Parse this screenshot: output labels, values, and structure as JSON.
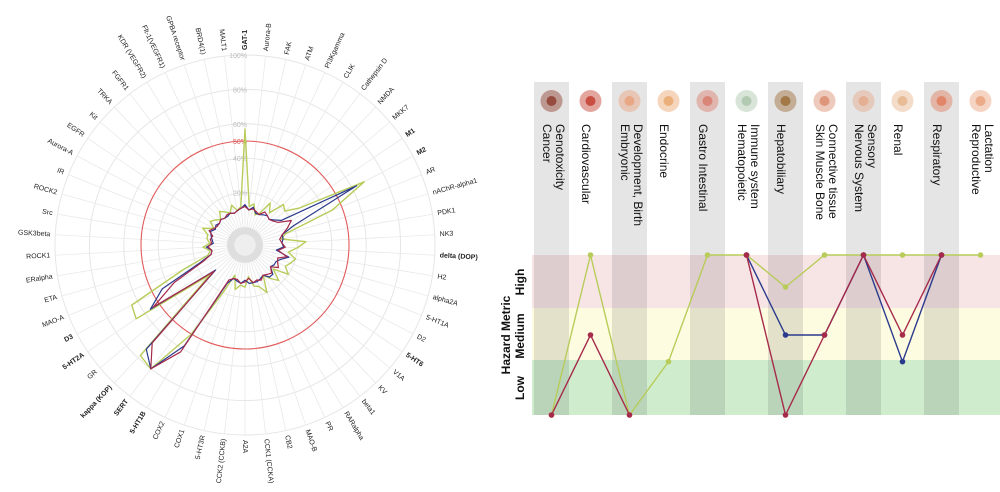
{
  "chart_data": [
    {
      "type": "radar",
      "rlim": [
        0,
        100
      ],
      "ring_labels": [
        "20%",
        "40%",
        "60%",
        "80%",
        "100%"
      ],
      "threshold": {
        "value": 50,
        "label": "50%",
        "color": "#e15a5a"
      },
      "axes": [
        "GAT-1",
        "Aurora-B",
        "FAK",
        "ATM",
        "PI3Kgamma",
        "CLIK",
        "Cathepsin D",
        "NMDA",
        "MKK7",
        "M1",
        "M2",
        "AR",
        "nAChR-alpha1",
        "PDK1",
        "NK3",
        "delta (DOP)",
        "H2",
        "alpha2A",
        "5-HT1A",
        "D2",
        "5-HT6",
        "V1A",
        "KV",
        "beta1",
        "RARalpha",
        "PR",
        "MAO-B",
        "CB2",
        "CCK1 (CCKA)",
        "A2A",
        "CCK2 (CCKB)",
        "5-HT3R",
        "COX1",
        "COX2",
        "5-HT1B",
        "SERT",
        "kappa (KOP)",
        "GR",
        "5-HT2A",
        "D3",
        "MAO-A",
        "ETA",
        "ERalpha",
        "ROCK1",
        "GSK3beta",
        "Src",
        "ROCK2",
        "IR",
        "Aurora-A",
        "EGFR",
        "Kit",
        "TRKA",
        "FGFR1",
        "KDR (VEGFR2)",
        "Flt-1(VEGFR1)",
        "GPBA receptor",
        "BRD4(1)",
        "MALT1"
      ],
      "bold_axes": [
        "GAT-1",
        "M1",
        "M2",
        "delta (DOP)",
        "5-HT6",
        "5-HT1B",
        "SERT",
        "kappa (KOP)",
        "5-HT2A",
        "D3"
      ],
      "series": [
        {
          "color": "#b8cc5a",
          "values": [
            57,
            12,
            14,
            8,
            10,
            18,
            13,
            22,
            20,
            28,
            68,
            44,
            14,
            11,
            25,
            20,
            15,
            20,
            18,
            16,
            20,
            11,
            18,
            14,
            10,
            20,
            15,
            14,
            8,
            14,
            13,
            16,
            8,
            20,
            50,
            80,
            78,
            16,
            66,
            64,
            28,
            12,
            10,
            14,
            10,
            12,
            12,
            16,
            10,
            14,
            12,
            10,
            14,
            12,
            10,
            14,
            10,
            12
          ]
        },
        {
          "color": "#2a3a8c",
          "values": [
            13,
            10,
            12,
            9,
            9,
            10,
            11,
            10,
            12,
            15,
            63,
            20,
            12,
            12,
            11,
            12,
            8,
            16,
            12,
            10,
            10,
            9,
            13,
            13,
            10,
            11,
            12,
            12,
            12,
            10,
            12,
            11,
            10,
            14,
            58,
            80,
            73,
            12,
            56,
            44,
            18,
            10,
            9,
            12,
            8,
            9,
            10,
            11,
            9,
            10,
            9,
            10,
            9,
            9,
            10,
            9,
            10,
            11
          ]
        },
        {
          "color": "#a62a4a",
          "values": [
            12,
            10,
            11,
            10,
            9,
            12,
            11,
            10,
            11,
            13,
            20,
            16,
            12,
            10,
            11,
            13,
            9,
            15,
            10,
            11,
            13,
            9,
            12,
            11,
            10,
            12,
            11,
            12,
            9,
            11,
            12,
            10,
            10,
            12,
            62,
            80,
            68,
            13,
            54,
            36,
            16,
            10,
            9,
            11,
            9,
            10,
            9,
            12,
            10,
            9,
            9,
            10,
            9,
            10,
            10,
            9,
            10,
            11
          ]
        }
      ]
    },
    {
      "type": "line",
      "ylabel": "Hazard Metric",
      "levels": [
        "Low",
        "Medium",
        "High"
      ],
      "band_colors": [
        "#cfeccd",
        "#fdfbe0",
        "#f7e5e6"
      ],
      "categories": [
        "Cancer\nGenotoxicity",
        "Cardiovascular",
        "Embryonic\nDevelopment, Birth",
        "Endocrine",
        "Gastro Intestinal",
        "Hematopoietic\nImmune system",
        "Hepatobiliary",
        "Skin Muscle Bone\nConnective tissue",
        "Nervous System\nSensory",
        "Renal",
        "Respiratory",
        "Reproductive\nLactation"
      ],
      "series": [
        {
          "color": "#b8cc5a",
          "values": [
            0,
            3,
            0,
            1,
            3,
            3,
            2.4,
            3,
            3,
            3,
            3,
            3
          ]
        },
        {
          "color": "#2a3a8c",
          "values": [
            null,
            null,
            null,
            null,
            null,
            3,
            1.5,
            1.5,
            3,
            1,
            3,
            null
          ]
        },
        {
          "color": "#a62a4a",
          "values": [
            0,
            1.5,
            0,
            null,
            null,
            3,
            0,
            1.5,
            3,
            1.5,
            3,
            null
          ]
        }
      ]
    }
  ]
}
